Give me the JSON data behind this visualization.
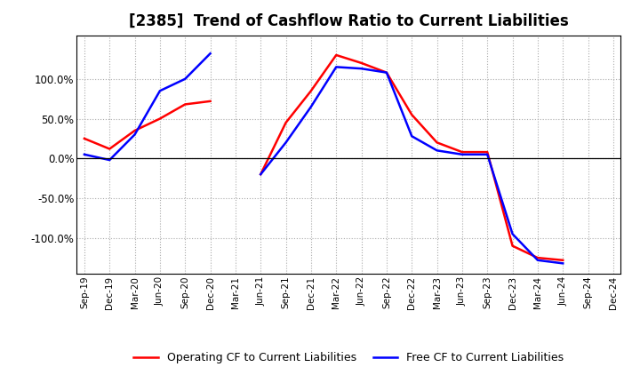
{
  "title": "[2385]  Trend of Cashflow Ratio to Current Liabilities",
  "x_labels": [
    "Sep-19",
    "Dec-19",
    "Mar-20",
    "Jun-20",
    "Sep-20",
    "Dec-20",
    "Mar-21",
    "Jun-21",
    "Sep-21",
    "Dec-21",
    "Mar-22",
    "Jun-22",
    "Sep-22",
    "Dec-22",
    "Mar-23",
    "Jun-23",
    "Sep-23",
    "Dec-23",
    "Mar-24",
    "Jun-24",
    "Sep-24",
    "Dec-24"
  ],
  "operating_cf": [
    25.0,
    12.0,
    35.0,
    50.0,
    68.0,
    72.0,
    null,
    -20.0,
    45.0,
    85.0,
    130.0,
    120.0,
    108.0,
    55.0,
    20.0,
    8.0,
    8.0,
    -110.0,
    -125.0,
    -128.0,
    null,
    null
  ],
  "free_cf": [
    5.0,
    -2.0,
    30.0,
    85.0,
    100.0,
    132.0,
    null,
    -20.0,
    20.0,
    65.0,
    115.0,
    113.0,
    108.0,
    28.0,
    10.0,
    5.0,
    5.0,
    -95.0,
    -128.0,
    -132.0,
    null,
    null
  ],
  "operating_color": "#FF0000",
  "free_color": "#0000FF",
  "ylim": [
    -145.0,
    155.0
  ],
  "yticks": [
    -100.0,
    -50.0,
    0.0,
    50.0,
    100.0
  ],
  "background_color": "#FFFFFF",
  "grid_color": "#AAAAAA",
  "title_fontsize": 12,
  "legend_labels": [
    "Operating CF to Current Liabilities",
    "Free CF to Current Liabilities"
  ]
}
